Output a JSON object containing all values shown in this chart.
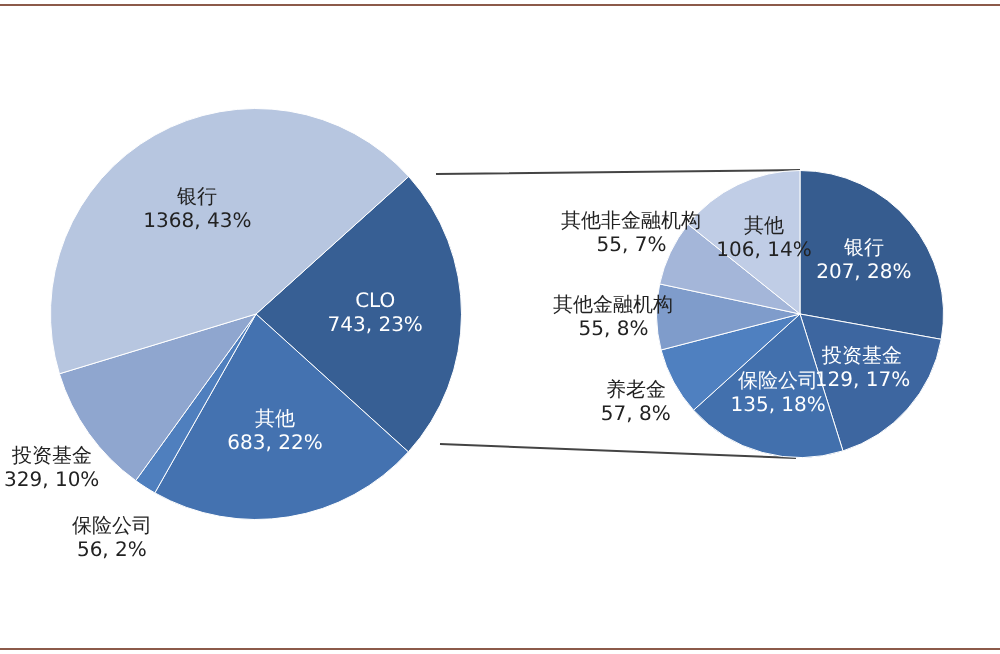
{
  "chart_data": [
    {
      "type": "pie",
      "categories": [
        "CLO",
        "其他",
        "保险公司",
        "投资基金",
        "银行"
      ],
      "values": [
        743,
        683,
        56,
        329,
        1368
      ],
      "value_labels": [
        "743, 23%",
        "683, 22%",
        "56, 2%",
        "329, 10%",
        "1368, 43%"
      ],
      "colors": [
        "#375f94",
        "#4472b0",
        "#4f7fbe",
        "#8fa6cf",
        "#b7c6e0"
      ],
      "legend": false
    },
    {
      "type": "pie",
      "categories": [
        "银行",
        "投资基金",
        "保险公司",
        "养老金",
        "其他金融机构",
        "其他非金融机构",
        "其他"
      ],
      "values": [
        207,
        129,
        135,
        57,
        55,
        55,
        106
      ],
      "value_labels": [
        "207, 28%",
        "129, 17%",
        "135, 18%",
        "57, 8%",
        "55, 8%",
        "55, 7%",
        "106, 14%"
      ],
      "colors": [
        "#365c8f",
        "#3d66a0",
        "#4270ad",
        "#4f80c0",
        "#7f9ccb",
        "#a4b6d9",
        "#c0cde6"
      ],
      "legend": false
    }
  ]
}
